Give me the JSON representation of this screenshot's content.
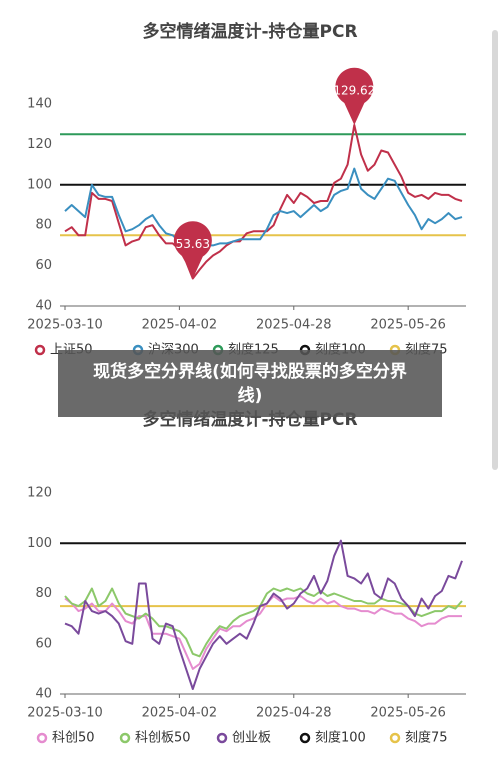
{
  "chart_data": [
    {
      "type": "line",
      "title": "多空情绪温度计-持仓量PCR",
      "categories": [
        "2025-03-10",
        null,
        null,
        null,
        null,
        null,
        null,
        null,
        null,
        null,
        null,
        null,
        null,
        null,
        null,
        null,
        null,
        "2025-04-02",
        null,
        null,
        null,
        null,
        null,
        null,
        null,
        null,
        null,
        null,
        null,
        null,
        null,
        null,
        null,
        null,
        "2025-04-28",
        null,
        null,
        null,
        null,
        null,
        null,
        null,
        null,
        null,
        null,
        null,
        null,
        null,
        null,
        null,
        null,
        "2025-05-26",
        null,
        null,
        null,
        null,
        null,
        null,
        null,
        null
      ],
      "series": [
        {
          "name": "上证50",
          "color": "#c0304a",
          "values": [
            77,
            79,
            75,
            75,
            96,
            93,
            93,
            92,
            81,
            70,
            72,
            73,
            79,
            80,
            75,
            71,
            71,
            68,
            62,
            53.63,
            58,
            62,
            65,
            67,
            70,
            72,
            72,
            76,
            77,
            77,
            77,
            80,
            88,
            95,
            91,
            96,
            94,
            91,
            92,
            92,
            101,
            103,
            110,
            129.62,
            115,
            107,
            110,
            117,
            116,
            110,
            104,
            96,
            94,
            95,
            93,
            96,
            95,
            95,
            93,
            92
          ]
        },
        {
          "name": "沪深300",
          "color": "#3a8fc0",
          "values": [
            87,
            90,
            87,
            84,
            100,
            95,
            94,
            94,
            85,
            77,
            78,
            80,
            83,
            85,
            80,
            76,
            75,
            72,
            75,
            67,
            69,
            70,
            70,
            71,
            71,
            72,
            73,
            73,
            73,
            73,
            78,
            85,
            87,
            86,
            87,
            84,
            87,
            90,
            87,
            89,
            95,
            97,
            98,
            108,
            98,
            95,
            93,
            98,
            103,
            102,
            96,
            90,
            85,
            78,
            83,
            81,
            83,
            86,
            83,
            84
          ]
        }
      ],
      "reference_lines": [
        {
          "name": "刻度125",
          "value": 125,
          "color": "#2e9a5a"
        },
        {
          "name": "刻度100",
          "value": 100,
          "color": "#111111"
        },
        {
          "name": "刻度75",
          "value": 75,
          "color": "#e6c34a"
        }
      ],
      "extreme_pins": true,
      "ylim": [
        40,
        140
      ],
      "yticks": [
        40,
        60,
        80,
        100,
        120,
        140
      ]
    },
    {
      "type": "line",
      "title": "多空情绪温度计-持仓量PCR",
      "categories": [
        "2025-03-10",
        null,
        null,
        null,
        null,
        null,
        null,
        null,
        null,
        null,
        null,
        null,
        null,
        null,
        null,
        null,
        null,
        "2025-04-02",
        null,
        null,
        null,
        null,
        null,
        null,
        null,
        null,
        null,
        null,
        null,
        null,
        null,
        null,
        null,
        null,
        "2025-04-28",
        null,
        null,
        null,
        null,
        null,
        null,
        null,
        null,
        null,
        null,
        null,
        null,
        null,
        null,
        null,
        null,
        "2025-05-26",
        null,
        null,
        null,
        null,
        null,
        null,
        null,
        null
      ],
      "series": [
        {
          "name": "科创50",
          "color": "#e58ccf",
          "values": [
            78,
            76,
            73,
            74,
            76,
            73,
            73,
            76,
            73,
            69,
            68,
            71,
            71,
            64,
            64,
            64,
            63,
            62,
            56,
            50,
            52,
            58,
            62,
            66,
            65,
            67,
            67,
            69,
            70,
            72,
            76,
            79,
            77,
            78,
            78,
            79,
            77,
            76,
            78,
            76,
            77,
            75,
            74,
            74,
            73,
            73,
            72,
            74,
            73,
            72,
            72,
            70,
            69,
            67,
            68,
            68,
            70,
            71,
            71,
            71
          ]
        },
        {
          "name": "科创板50",
          "color": "#8cc86a",
          "values": [
            79,
            76,
            75,
            77,
            82,
            75,
            77,
            82,
            76,
            72,
            71,
            70,
            72,
            70,
            67,
            67,
            66,
            65,
            62,
            56,
            55,
            60,
            64,
            67,
            66,
            69,
            71,
            72,
            73,
            75,
            80,
            82,
            81,
            82,
            81,
            82,
            80,
            79,
            81,
            79,
            80,
            79,
            78,
            77,
            77,
            76,
            76,
            78,
            77,
            77,
            76,
            75,
            72,
            71,
            72,
            73,
            73,
            75,
            74,
            77
          ]
        },
        {
          "name": "创业板",
          "color": "#7a4a9c",
          "values": [
            68,
            67,
            64,
            77,
            73,
            72,
            73,
            71,
            68,
            61,
            60,
            84,
            84,
            62,
            60,
            68,
            67,
            58,
            50,
            42,
            50,
            55,
            60,
            63,
            60,
            62,
            64,
            62,
            68,
            75,
            76,
            80,
            78,
            74,
            76,
            80,
            82,
            87,
            80,
            85,
            95,
            101,
            87,
            86,
            84,
            88,
            80,
            78,
            86,
            84,
            78,
            75,
            71,
            78,
            74,
            79,
            81,
            87,
            86,
            93
          ]
        }
      ],
      "reference_lines": [
        {
          "name": "刻度100",
          "value": 100,
          "color": "#111111"
        },
        {
          "name": "刻度75",
          "value": 75,
          "color": "#e6c34a"
        }
      ],
      "extreme_pins": false,
      "ylim": [
        40,
        120
      ],
      "yticks": [
        40,
        60,
        80,
        100,
        120
      ]
    }
  ],
  "overlay_caption": "现货多空分界线(如何寻找股票的多空分界线)"
}
